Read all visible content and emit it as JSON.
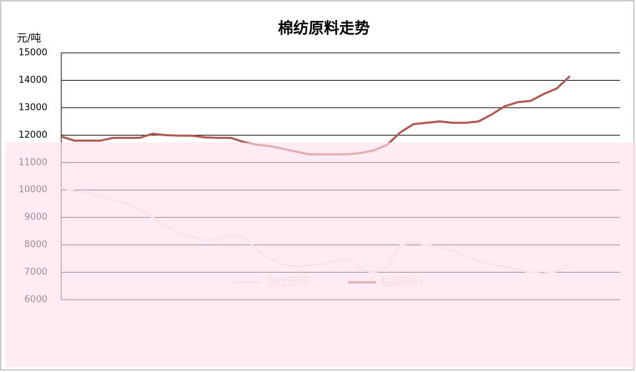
{
  "chart_data": {
    "type": "line",
    "title": "棉纺原料走势",
    "y_label": "元/吨",
    "categories": [
      null,
      null,
      null,
      null,
      null,
      null,
      null,
      null,
      null,
      null,
      null,
      null,
      null,
      null,
      null,
      null,
      null,
      null,
      null,
      null,
      null,
      null,
      null,
      null,
      null,
      null,
      null,
      null,
      null,
      null,
      null,
      null,
      null,
      null,
      null,
      null,
      null,
      null,
      null,
      null
    ],
    "series": [
      {
        "name": "涤纶短纤",
        "color": "#f3e4ea",
        "values": [
          10100,
          9950,
          9900,
          9750,
          9650,
          9500,
          9300,
          9000,
          8700,
          8450,
          8300,
          8150,
          8200,
          8350,
          8300,
          7800,
          7500,
          7300,
          7200,
          7250,
          7300,
          7400,
          7500,
          7100,
          7000,
          7200,
          8000,
          8100,
          8000,
          7900,
          7800,
          7600,
          7400,
          7300,
          7200,
          7100,
          7000,
          6950,
          7050,
          7300
        ]
      },
      {
        "name": "粘胶短纤",
        "color": "#b0574f",
        "values": [
          11950,
          11800,
          11800,
          11800,
          11900,
          11900,
          11900,
          12050,
          12000,
          11980,
          11980,
          11920,
          11900,
          11900,
          11750,
          11650,
          11600,
          11500,
          11400,
          11300,
          11300,
          11300,
          11300,
          11350,
          11450,
          11650,
          12100,
          12400,
          12450,
          12500,
          12450,
          12450,
          12500,
          12750,
          13050,
          13200,
          13250,
          13500,
          13700,
          14150
        ]
      }
    ],
    "ylim": [
      6000,
      15000
    ],
    "yticks": [
      6000,
      7000,
      8000,
      9000,
      10000,
      11000,
      12000,
      13000,
      14000,
      15000
    ],
    "grid": true
  }
}
